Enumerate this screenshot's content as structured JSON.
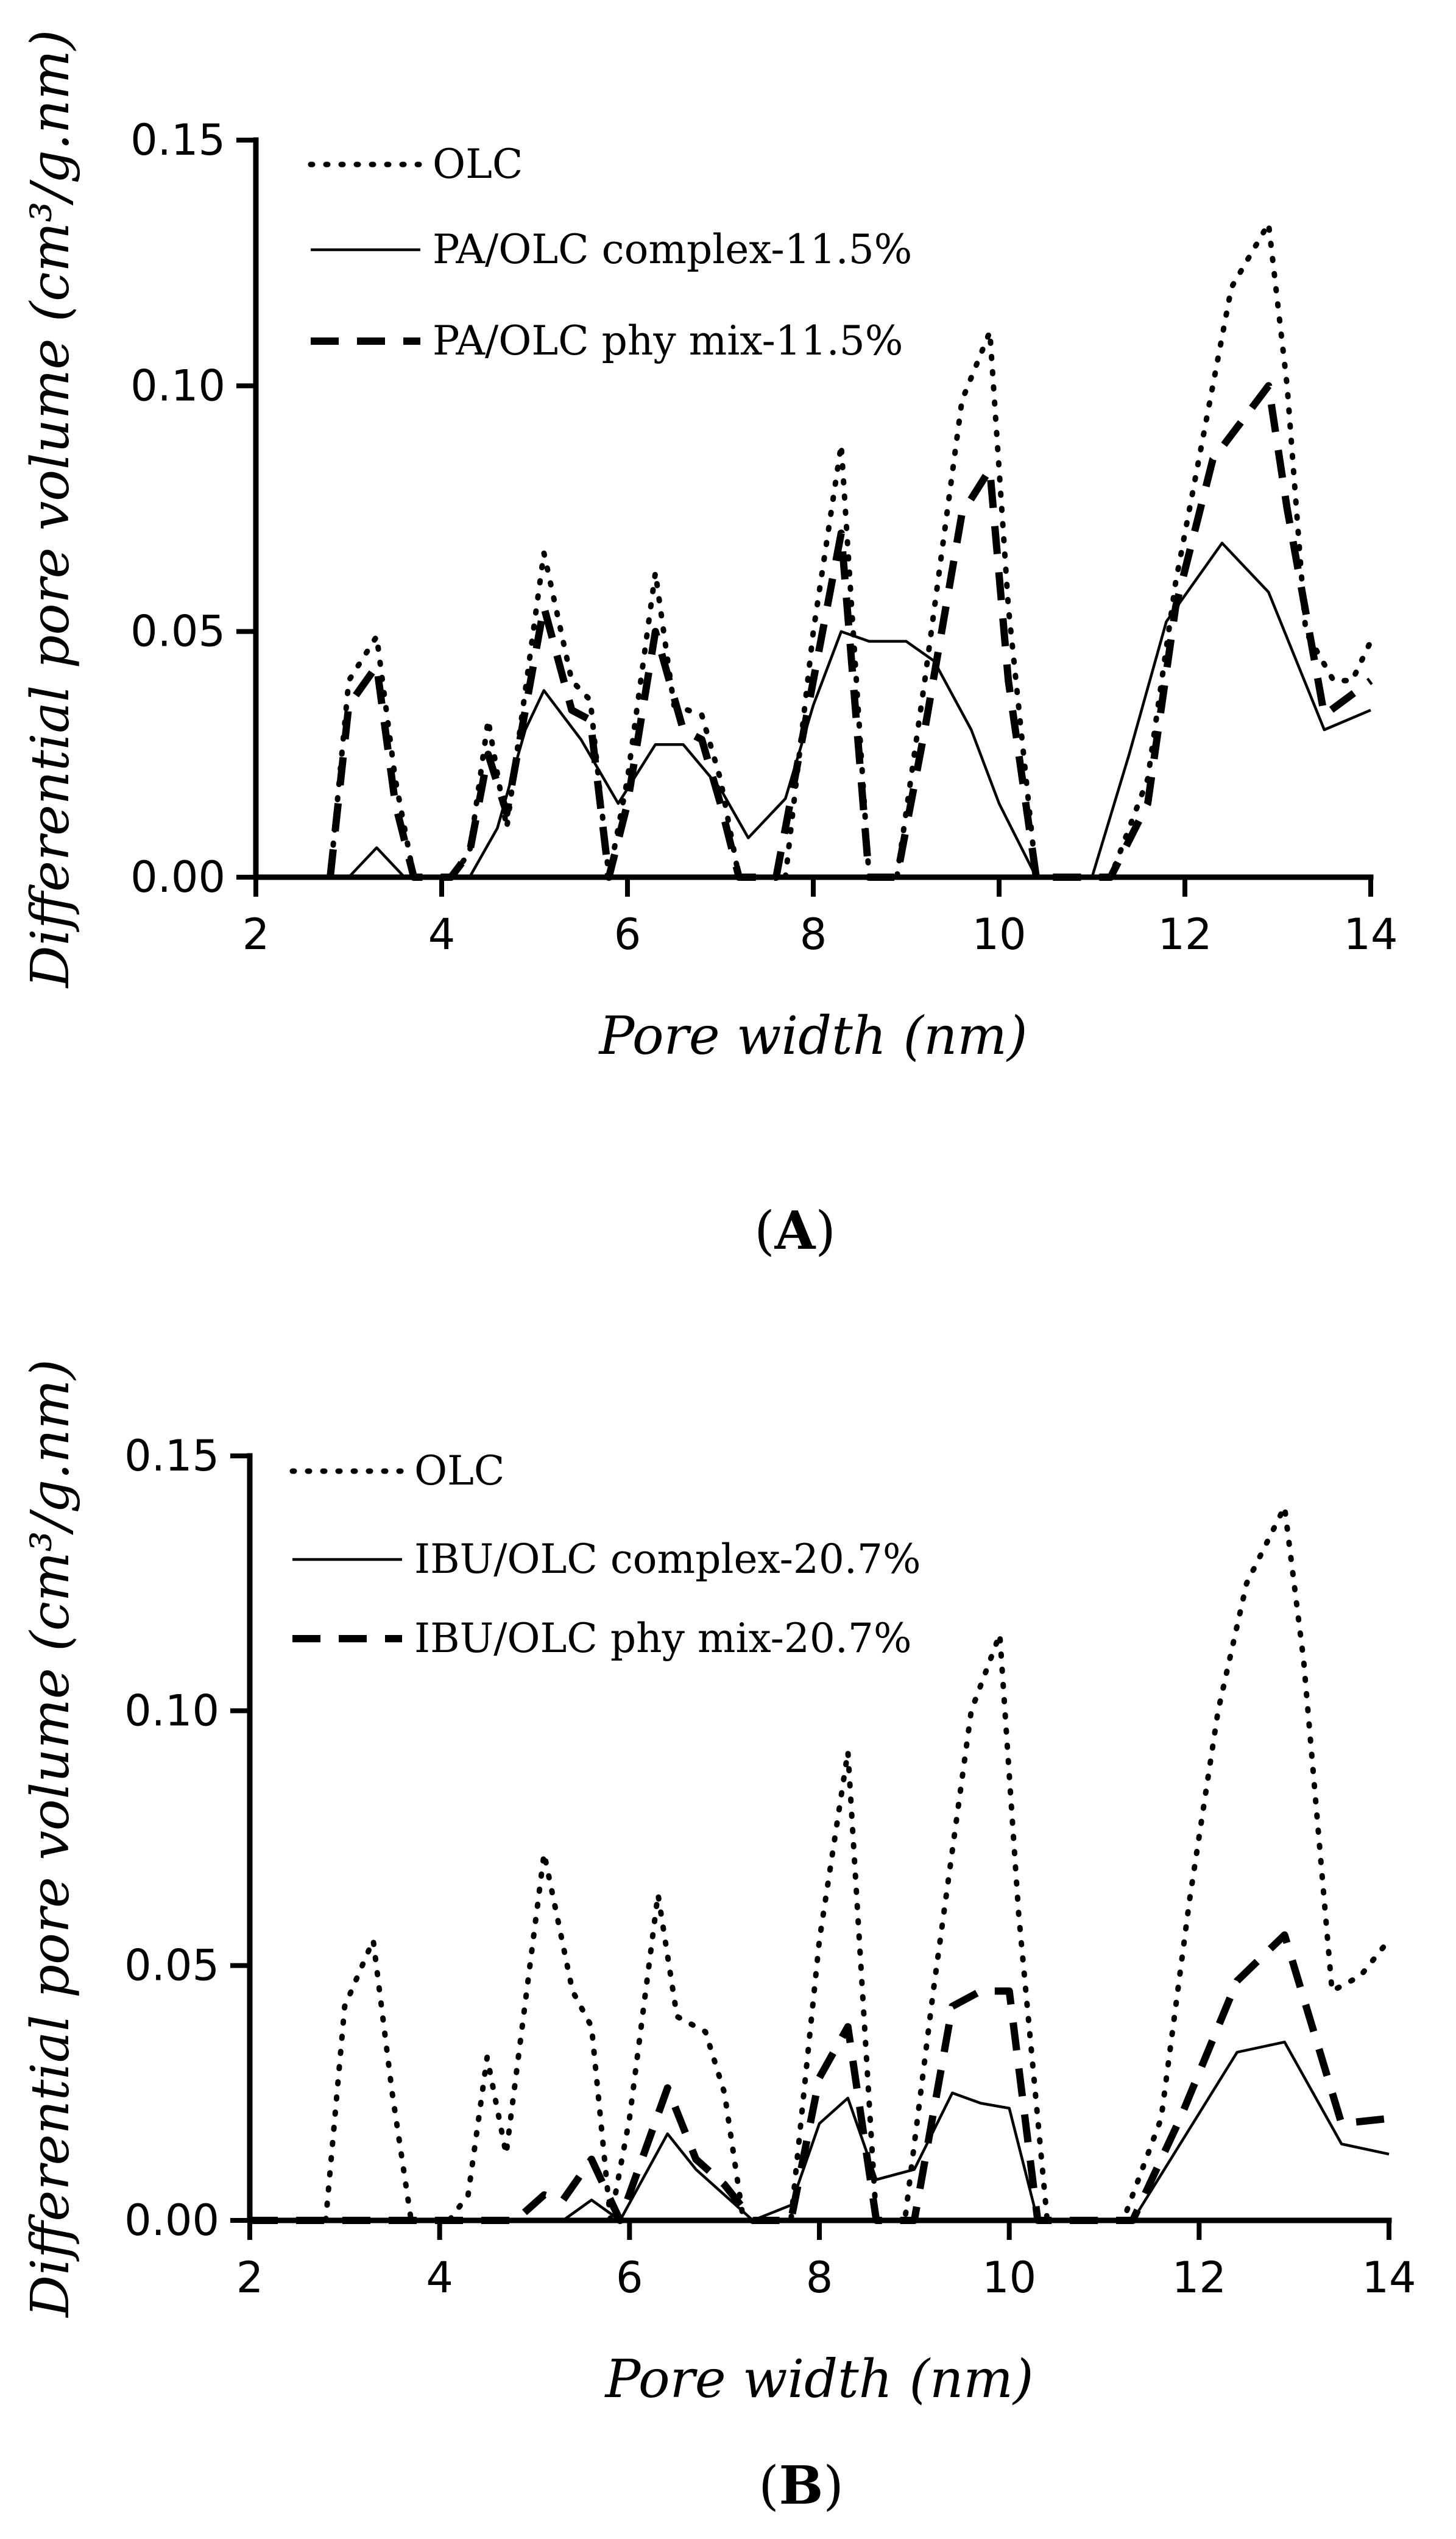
{
  "chart_data": [
    {
      "type": "line",
      "panel_label": "A",
      "xlabel": "Pore width (nm)",
      "ylabel": "Differential pore volume (cm³/g.nm)",
      "xlim": [
        2,
        14
      ],
      "ylim": [
        0,
        0.15
      ],
      "xticks": [
        "2",
        "4",
        "6",
        "8",
        "10",
        "12",
        "14"
      ],
      "yticks": [
        "0.00",
        "0.05",
        "0.10",
        "0.15"
      ],
      "legend_position": "top-left",
      "series": [
        {
          "name": "OLC",
          "style": "dotted",
          "x": [
            2.0,
            2.8,
            3.0,
            3.3,
            3.5,
            3.7,
            4.1,
            4.3,
            4.5,
            4.7,
            5.1,
            5.4,
            5.6,
            5.8,
            6.0,
            6.3,
            6.5,
            6.8,
            7.0,
            7.2,
            7.4,
            7.7,
            8.0,
            8.3,
            8.6,
            8.9,
            9.2,
            9.6,
            9.9,
            10.1,
            10.4,
            10.8,
            11.2,
            11.6,
            11.9,
            12.2,
            12.5,
            12.9,
            13.1,
            13.3,
            13.6,
            13.8,
            14.0
          ],
          "y": [
            0.0,
            0.0,
            0.04,
            0.049,
            0.02,
            0.0,
            0.0,
            0.005,
            0.032,
            0.01,
            0.066,
            0.04,
            0.036,
            0.0,
            0.02,
            0.062,
            0.035,
            0.033,
            0.02,
            0.0,
            0.0,
            0.0,
            0.05,
            0.088,
            0.0,
            0.0,
            0.04,
            0.097,
            0.111,
            0.055,
            0.0,
            0.0,
            0.0,
            0.02,
            0.06,
            0.09,
            0.12,
            0.133,
            0.1,
            0.05,
            0.04,
            0.04,
            0.048
          ]
        },
        {
          "name": "PA/OLC complex-11.5%",
          "style": "solid",
          "x": [
            2.0,
            3.0,
            3.3,
            3.6,
            4.3,
            4.6,
            4.9,
            5.1,
            5.5,
            5.9,
            6.3,
            6.6,
            7.0,
            7.3,
            7.7,
            8.0,
            8.3,
            8.6,
            9.0,
            9.3,
            9.7,
            10.0,
            10.4,
            10.8,
            11.0,
            11.4,
            11.8,
            12.4,
            12.9,
            13.5,
            14.0
          ],
          "y": [
            0.0,
            0.0,
            0.006,
            0.0,
            0.0,
            0.01,
            0.03,
            0.038,
            0.028,
            0.015,
            0.027,
            0.027,
            0.018,
            0.008,
            0.016,
            0.035,
            0.05,
            0.048,
            0.048,
            0.044,
            0.03,
            0.015,
            0.0,
            0.0,
            0.0,
            0.025,
            0.052,
            0.068,
            0.058,
            0.03,
            0.034
          ]
        },
        {
          "name": "PA/OLC phy mix-11.5%",
          "style": "dashed",
          "x": [
            2.8,
            3.0,
            3.3,
            3.5,
            3.7,
            4.1,
            4.3,
            4.5,
            4.7,
            5.1,
            5.4,
            5.6,
            5.8,
            6.0,
            6.3,
            6.6,
            6.8,
            7.0,
            7.2,
            7.6,
            8.0,
            8.3,
            8.6,
            8.9,
            9.2,
            9.6,
            9.9,
            10.1,
            10.4,
            11.2,
            11.6,
            11.9,
            12.3,
            12.9,
            13.1,
            13.5,
            14.0
          ],
          "y": [
            0.0,
            0.035,
            0.043,
            0.015,
            0.0,
            0.0,
            0.005,
            0.025,
            0.013,
            0.055,
            0.034,
            0.032,
            0.0,
            0.015,
            0.05,
            0.03,
            0.028,
            0.015,
            0.0,
            0.0,
            0.04,
            0.07,
            0.0,
            0.0,
            0.03,
            0.074,
            0.083,
            0.04,
            0.0,
            0.0,
            0.015,
            0.055,
            0.085,
            0.1,
            0.075,
            0.033,
            0.04
          ]
        }
      ]
    },
    {
      "type": "line",
      "panel_label": "B",
      "xlabel": "Pore width (nm)",
      "ylabel": "Differential pore volume (cm³/g.nm)",
      "xlim": [
        2,
        14
      ],
      "ylim": [
        0,
        0.15
      ],
      "xticks": [
        "2",
        "4",
        "6",
        "8",
        "10",
        "12",
        "14"
      ],
      "yticks": [
        "0.00",
        "0.05",
        "0.10",
        "0.15"
      ],
      "legend_position": "top-left",
      "series": [
        {
          "name": "OLC",
          "style": "dotted",
          "x": [
            2.0,
            2.8,
            3.0,
            3.3,
            3.5,
            3.7,
            4.1,
            4.3,
            4.5,
            4.7,
            5.1,
            5.4,
            5.6,
            5.8,
            6.0,
            6.3,
            6.5,
            6.8,
            7.0,
            7.2,
            7.4,
            7.7,
            8.0,
            8.3,
            8.6,
            8.9,
            9.2,
            9.6,
            9.9,
            10.1,
            10.4,
            10.8,
            11.2,
            11.6,
            11.9,
            12.2,
            12.5,
            12.9,
            13.1,
            13.4,
            13.7,
            14.0
          ],
          "y": [
            0.0,
            0.0,
            0.042,
            0.055,
            0.025,
            0.0,
            0.0,
            0.005,
            0.032,
            0.013,
            0.072,
            0.045,
            0.038,
            0.0,
            0.02,
            0.064,
            0.04,
            0.037,
            0.025,
            0.0,
            0.0,
            0.0,
            0.055,
            0.092,
            0.0,
            0.0,
            0.045,
            0.1,
            0.115,
            0.06,
            0.0,
            0.0,
            0.0,
            0.02,
            0.063,
            0.1,
            0.125,
            0.14,
            0.11,
            0.045,
            0.048,
            0.055
          ]
        },
        {
          "name": "IBU/OLC complex-20.7%",
          "style": "solid",
          "x": [
            2.0,
            5.3,
            5.6,
            5.9,
            6.4,
            6.7,
            7.0,
            7.3,
            7.7,
            8.0,
            8.3,
            8.6,
            9.0,
            9.4,
            9.7,
            10.0,
            10.3,
            11.3,
            11.8,
            12.4,
            12.9,
            13.5,
            14.0
          ],
          "y": [
            0.0,
            0.0,
            0.004,
            0.0,
            0.017,
            0.01,
            0.005,
            0.0,
            0.003,
            0.019,
            0.024,
            0.008,
            0.01,
            0.025,
            0.023,
            0.022,
            0.0,
            0.0,
            0.015,
            0.033,
            0.035,
            0.015,
            0.013
          ]
        },
        {
          "name": "IBU/OLC phy mix-20.7%",
          "style": "dashed",
          "x": [
            2.0,
            4.8,
            5.1,
            5.3,
            5.6,
            5.9,
            6.4,
            6.7,
            7.0,
            7.3,
            7.7,
            8.0,
            8.3,
            8.6,
            9.0,
            9.4,
            9.7,
            10.0,
            10.3,
            11.3,
            11.8,
            12.4,
            12.9,
            13.5,
            14.0
          ],
          "y": [
            0.0,
            0.0,
            0.005,
            0.004,
            0.012,
            0.0,
            0.026,
            0.012,
            0.007,
            0.0,
            0.0,
            0.028,
            0.038,
            0.0,
            0.0,
            0.042,
            0.045,
            0.045,
            0.0,
            0.0,
            0.02,
            0.047,
            0.056,
            0.019,
            0.02
          ]
        }
      ]
    }
  ]
}
